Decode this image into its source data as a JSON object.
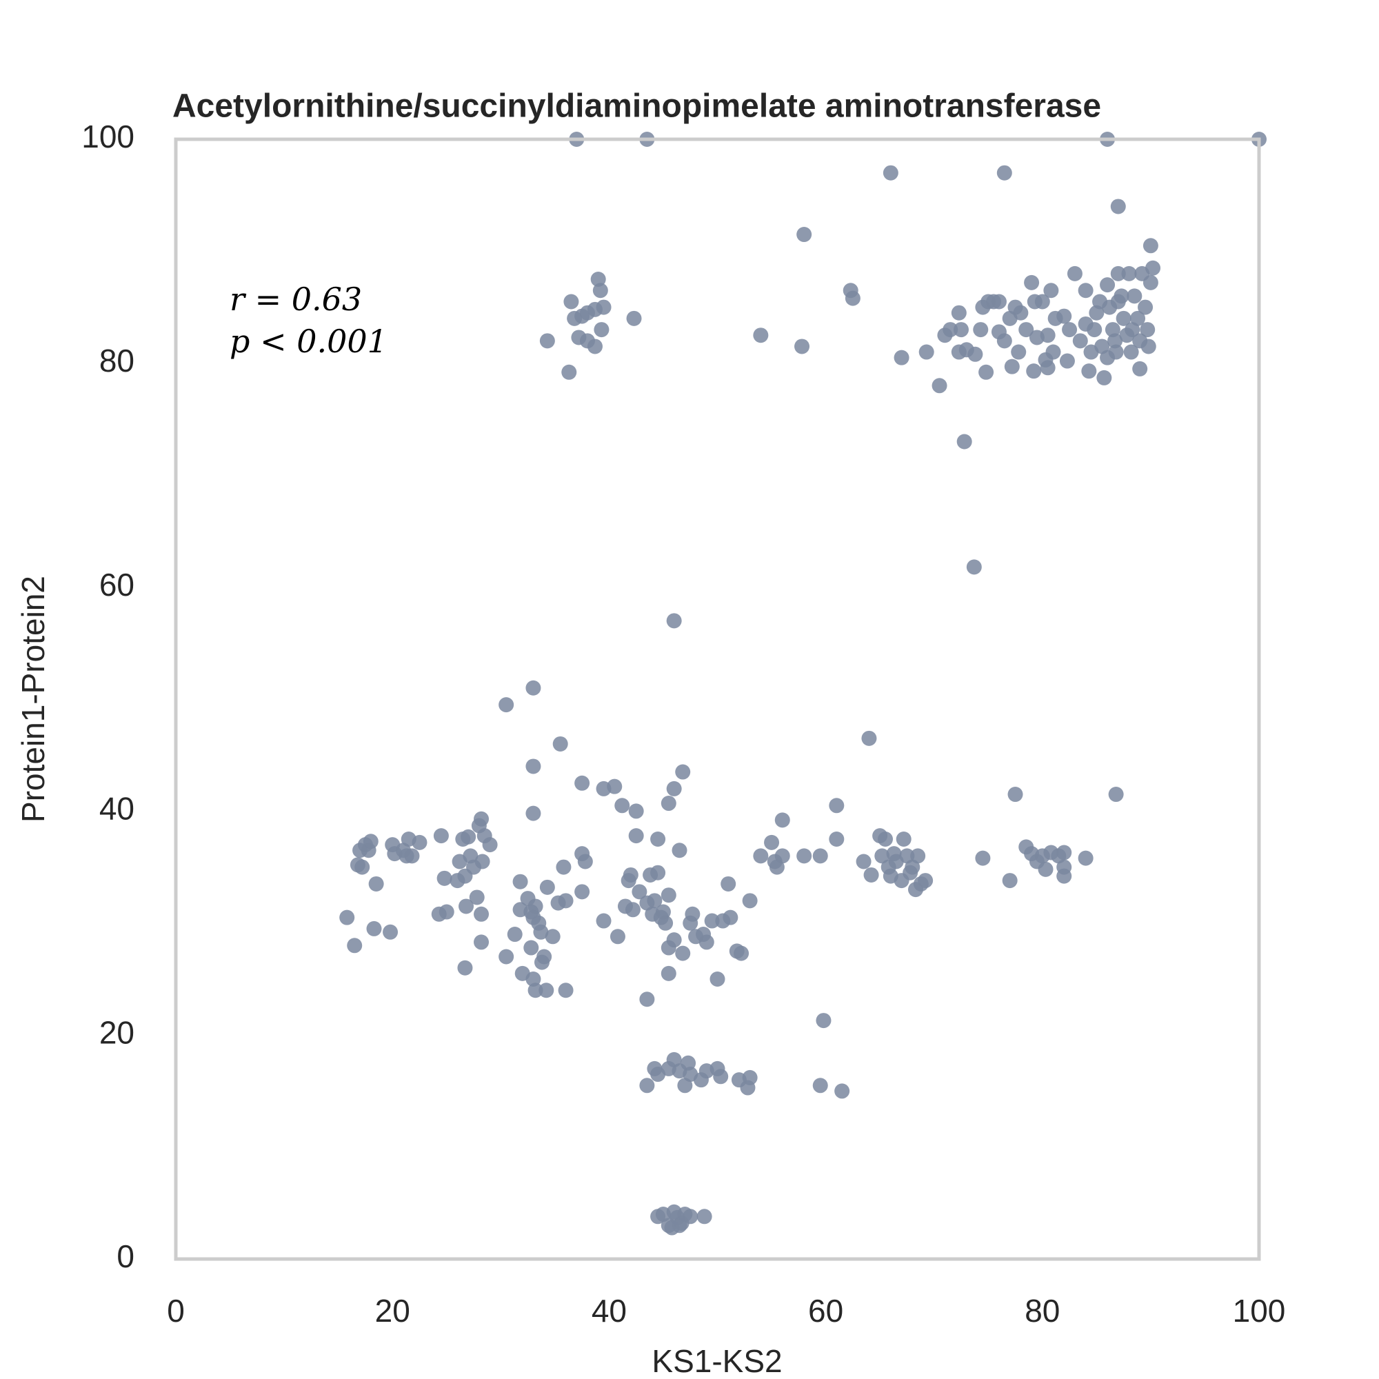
{
  "chart_data": {
    "type": "scatter",
    "title": "Acetylornithine/succinyldiaminopimelate aminotransferase",
    "xlabel": "KS1-KS2",
    "ylabel": "Protein1-Protein2",
    "annotations": [
      "r = 0.63",
      "p < 0.001"
    ],
    "color": "#7a879f",
    "xlim": [
      0,
      100
    ],
    "ylim": [
      0,
      100
    ],
    "xticks": [
      0,
      20,
      40,
      60,
      80,
      100
    ],
    "yticks": [
      0,
      20,
      40,
      60,
      80,
      100
    ],
    "grid": false,
    "x": [
      37,
      43.5,
      86,
      100,
      66,
      76.5,
      87,
      58,
      90,
      36.5,
      39,
      39.2,
      36.8,
      37.5,
      38,
      38.7,
      39.5,
      39.3,
      37.2,
      38,
      38.7,
      34.3,
      36.3,
      42.3,
      54,
      57.8,
      62.3,
      62.5,
      67,
      69.3,
      70.5,
      71,
      71.5,
      72.3,
      72.5,
      72.8,
      73.7,
      72.3,
      73,
      73.8,
      74.3,
      74.5,
      75,
      75.5,
      76,
      74.8,
      76,
      76.5,
      77,
      77.5,
      78,
      77.2,
      77.8,
      78.5,
      79,
      79.3,
      79.5,
      79.2,
      80,
      80.5,
      80.8,
      81,
      80.3,
      80.5,
      81.2,
      82,
      82.5,
      82.3,
      83,
      83.5,
      84,
      84.3,
      84.5,
      84.8,
      85,
      85.5,
      85.7,
      86,
      86.2,
      86.5,
      86.7,
      87,
      87.3,
      87.5,
      87.8,
      88,
      88.2,
      88.5,
      88.8,
      89,
      89.2,
      89.5,
      89.7,
      90,
      90.2,
      89.8,
      86,
      85.3,
      84,
      86.8,
      88.3,
      87,
      89,
      46,
      30.5,
      33,
      33,
      35.5,
      46.8,
      46,
      45.5,
      37.5,
      39.5,
      40.5,
      41.2,
      42.5,
      33,
      64,
      61,
      56,
      86.8,
      77.5,
      15.8,
      16.5,
      16.8,
      17,
      17.2,
      17.5,
      17.8,
      18,
      18.3,
      18.5,
      19.8,
      20,
      20.2,
      21,
      21.3,
      21.5,
      21.8,
      22.5,
      24.3,
      24.5,
      24.8,
      25,
      26,
      26.2,
      26.5,
      26.7,
      27,
      27.2,
      27.5,
      27.8,
      28,
      28.2,
      28.3,
      28.5,
      28.2,
      28.2,
      26.7,
      26.8,
      29,
      30.5,
      31.3,
      31.8,
      31.8,
      32,
      32.5,
      32.8,
      32.8,
      33,
      33.2,
      33,
      33.2,
      33.5,
      33.7,
      33.8,
      34,
      34.2,
      34.3,
      34.8,
      35.3,
      35.8,
      36,
      36,
      37.5,
      37.5,
      37.8,
      39.5,
      40.8,
      41.5,
      41.8,
      42,
      42.2,
      42.5,
      42.8,
      43.5,
      43.5,
      43.8,
      44,
      44.2,
      44.5,
      44.5,
      44.8,
      45,
      45.2,
      45.5,
      45.5,
      45.5,
      46,
      46.5,
      46.8,
      47.5,
      47.7,
      48,
      48.7,
      49,
      49.5,
      50,
      50.5,
      51,
      51.2,
      51.8,
      52.2,
      53,
      54,
      55,
      55.3,
      55.5,
      56,
      58,
      59.5,
      61,
      63.5,
      64.2,
      65,
      65.2,
      65.5,
      65.8,
      66,
      66.3,
      66.5,
      67,
      67.2,
      67.5,
      67.8,
      68,
      68.3,
      68.5,
      68.8,
      69.2,
      74.5,
      77,
      78.5,
      79,
      79.5,
      80,
      80.3,
      80.8,
      81.5,
      82,
      82,
      82,
      84,
      44.2,
      44.5,
      43.5,
      45.5,
      46,
      46.5,
      47,
      47.3,
      47.5,
      48.5,
      49,
      50,
      50.3,
      52,
      52.8,
      53,
      59.5,
      61.5,
      59.8,
      44.5,
      45,
      45.5,
      46,
      46.3,
      46.7,
      47,
      47.5,
      48.8,
      46.5,
      45.8
    ],
    "values": [
      100,
      100,
      100,
      100,
      97,
      97,
      94,
      91.5,
      90.5,
      85.5,
      87.5,
      86.5,
      84,
      84.2,
      84.5,
      84.8,
      85,
      83,
      82.3,
      82,
      81.5,
      82,
      79.2,
      84,
      82.5,
      81.5,
      86.5,
      85.8,
      80.5,
      81,
      78,
      82.5,
      83,
      84.5,
      83,
      73,
      61.8,
      81,
      81.2,
      80.8,
      83,
      85,
      85.5,
      85.5,
      85.5,
      79.2,
      82.8,
      82,
      84,
      85,
      84.5,
      79.7,
      81,
      83,
      87.2,
      85.5,
      82.3,
      79.3,
      85.5,
      82.5,
      86.5,
      81,
      80.3,
      79.6,
      84,
      84.2,
      83,
      80.2,
      88,
      82,
      86.5,
      79.3,
      81,
      83,
      84.5,
      81.5,
      78.7,
      87,
      85,
      83,
      82,
      88,
      86,
      84,
      82.5,
      88,
      81,
      86,
      84,
      79.5,
      88,
      85,
      83,
      87.2,
      88.5,
      81.5,
      80.5,
      85.5,
      83.5,
      81,
      83,
      85.5,
      82,
      57,
      49.5,
      51,
      44,
      46,
      43.5,
      42,
      40.7,
      42.5,
      42,
      42.2,
      40.5,
      40,
      39.8,
      46.5,
      40.5,
      39.2,
      41.5,
      41.5,
      30.5,
      28,
      35.2,
      36.5,
      35,
      37,
      36.5,
      37.3,
      29.5,
      33.5,
      29.2,
      37,
      36.2,
      36.5,
      36,
      37.5,
      36,
      37.2,
      30.8,
      37.8,
      34,
      31,
      33.8,
      35.5,
      37.5,
      34.2,
      37.7,
      36,
      35,
      32.3,
      38.7,
      39.3,
      35.5,
      37.8,
      30.8,
      28.3,
      26,
      31.5,
      37,
      27,
      29,
      31.2,
      33.7,
      25.5,
      32.2,
      31,
      27.8,
      30.5,
      31.5,
      25,
      24,
      30,
      29.2,
      26.5,
      27,
      24,
      33.2,
      28.8,
      31.8,
      35,
      32,
      24,
      32.8,
      36.2,
      35.5,
      30.2,
      28.8,
      31.5,
      33.8,
      34.3,
      31.2,
      37.8,
      32.8,
      31.8,
      23.2,
      34.3,
      30.8,
      32,
      34.5,
      37.5,
      30.5,
      31,
      30,
      32.5,
      25.5,
      27.8,
      28.5,
      36.5,
      27.3,
      30,
      30.8,
      28.8,
      29,
      28.3,
      30.2,
      25,
      30.2,
      33.5,
      30.5,
      27.5,
      27.3,
      32,
      36,
      37.2,
      35.5,
      35,
      36,
      36,
      36,
      37.5,
      35.5,
      34.3,
      37.8,
      36,
      37.5,
      35,
      34.2,
      36.2,
      35.5,
      33.8,
      37.5,
      36,
      34.5,
      35,
      33,
      36,
      33.5,
      33.8,
      35.8,
      33.8,
      36.8,
      36.2,
      35.5,
      36,
      34.8,
      36.3,
      36,
      35,
      34.2,
      36.3,
      35.8,
      17,
      16.5,
      15.5,
      17,
      17.8,
      16.8,
      15.5,
      17.5,
      16.5,
      16,
      16.8,
      17,
      16.3,
      16,
      15.3,
      16.2,
      15.5,
      15,
      21.3,
      3.8,
      4,
      3,
      4.2,
      3.7,
      3.2,
      4,
      3.8,
      3.8,
      3,
      2.8
    ]
  }
}
